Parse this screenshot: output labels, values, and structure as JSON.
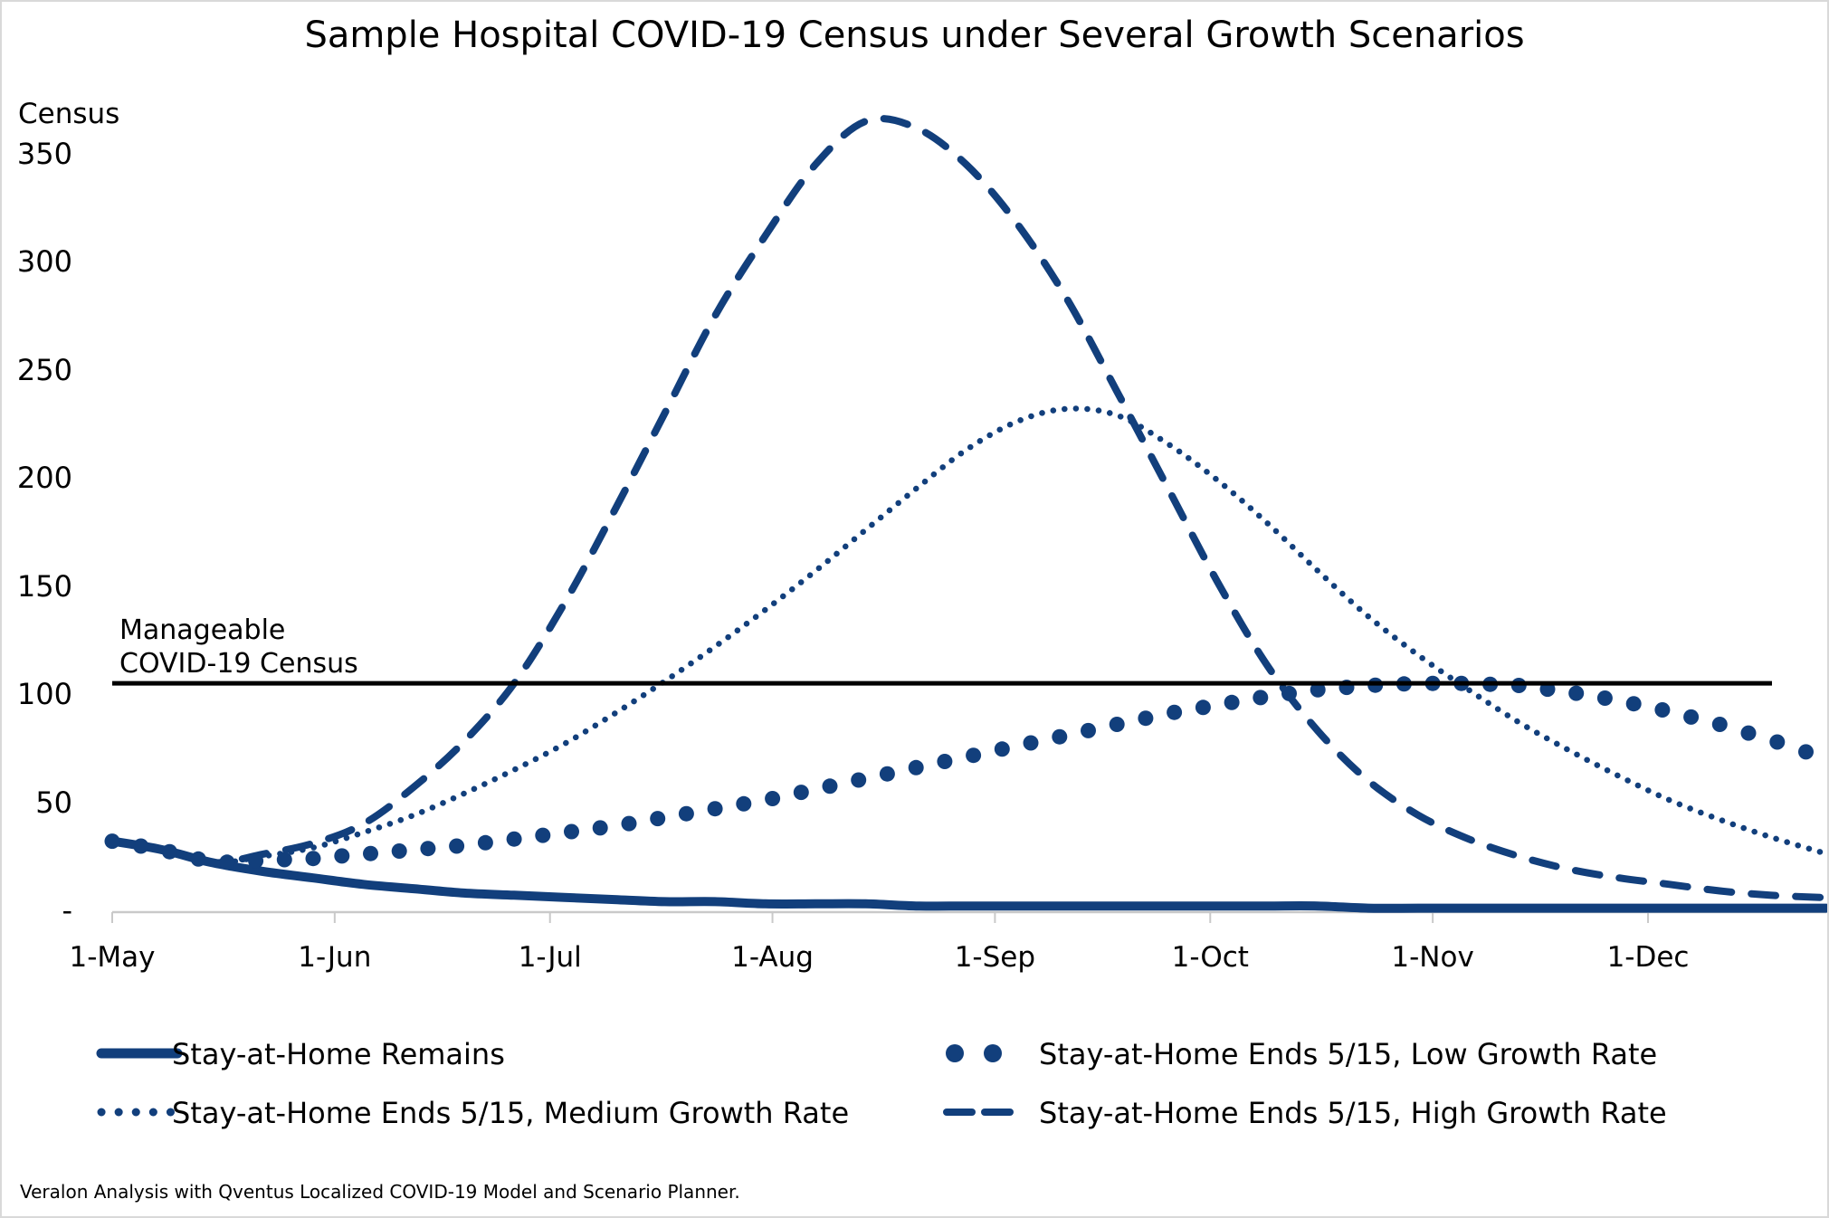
{
  "title": "Sample Hospital COVID-19 Census under Several Growth Scenarios",
  "y_axis": {
    "title": "Census",
    "tick_labels": [
      "350",
      "300",
      "250",
      "200",
      "150",
      "100",
      "50",
      "-"
    ],
    "tick_values": [
      350,
      300,
      250,
      200,
      150,
      100,
      50,
      0
    ]
  },
  "x_axis": {
    "tick_labels": [
      "1-May",
      "1-Jun",
      "1-Jul",
      "1-Aug",
      "1-Sep",
      "1-Oct",
      "1-Nov",
      "1-Dec"
    ],
    "tick_day_offsets": [
      0,
      31,
      61,
      92,
      123,
      153,
      184,
      214
    ]
  },
  "reference_line": {
    "label_line1": "Manageable",
    "label_line2": "COVID-19 Census",
    "value": 105
  },
  "legend": {
    "item1": "Stay-at-Home Remains",
    "item2": "Stay-at-Home Ends 5/15, Low Growth Rate",
    "item3": "Stay-at-Home Ends 5/15, Medium Growth Rate",
    "item4": "Stay-at-Home Ends 5/15, High Growth Rate"
  },
  "footnote": "Veralon Analysis with Qventus Localized COVID-19 Model and Scenario Planner.",
  "colors": {
    "series_navy": "#123F7C",
    "reference_black": "#000000",
    "axis_gray": "#C9C9C9",
    "text_black": "#000000"
  },
  "chart_data": {
    "type": "line",
    "title": "Sample Hospital COVID-19 Census under Several Growth Scenarios",
    "ylabel": "Census",
    "ylim": [
      0,
      380
    ],
    "y_tick_values": [
      0,
      50,
      100,
      150,
      200,
      250,
      300,
      350
    ],
    "x_tick_labels": [
      "1-May",
      "1-Jun",
      "1-Jul",
      "1-Aug",
      "1-Sep",
      "1-Oct",
      "1-Nov",
      "1-Dec"
    ],
    "reference_line_value": 105,
    "grid": false,
    "legend_position": "bottom",
    "x_weekly_dates": [
      "May-01",
      "May-08",
      "May-15",
      "May-22",
      "May-29",
      "Jun-05",
      "Jun-12",
      "Jun-19",
      "Jun-26",
      "Jul-03",
      "Jul-10",
      "Jul-17",
      "Jul-24",
      "Jul-31",
      "Aug-07",
      "Aug-14",
      "Aug-21",
      "Aug-28",
      "Sep-04",
      "Sep-11",
      "Sep-18",
      "Sep-25",
      "Oct-02",
      "Oct-09",
      "Oct-16",
      "Oct-23",
      "Oct-30",
      "Nov-06",
      "Nov-13",
      "Nov-20",
      "Nov-27",
      "Dec-04",
      "Dec-11",
      "Dec-18",
      "Dec-25"
    ],
    "series": [
      {
        "name": "Stay-at-Home Remains",
        "style": "solid",
        "values": [
          32,
          28,
          22,
          18,
          15,
          12,
          10,
          8,
          7,
          6,
          5,
          4,
          4,
          3,
          3,
          3,
          2,
          2,
          2,
          2,
          2,
          2,
          2,
          2,
          2,
          1,
          1,
          1,
          1,
          1,
          1,
          1,
          1,
          1,
          1
        ]
      },
      {
        "name": "Stay-at-Home Ends 5/15, Low Growth Rate",
        "style": "round-dots",
        "values": [
          32,
          28,
          22,
          23,
          24,
          26,
          28,
          30,
          33,
          36,
          39,
          43,
          47,
          51,
          56,
          61,
          66,
          71,
          76,
          81,
          86,
          91,
          95,
          99,
          102,
          104,
          105,
          105,
          104,
          101,
          97,
          92,
          86,
          79,
          71
        ]
      },
      {
        "name": "Stay-at-Home Ends 5/15, Medium Growth Rate",
        "style": "fine-dotted",
        "values": [
          32,
          28,
          22,
          25,
          29,
          36,
          44,
          54,
          65,
          77,
          91,
          106,
          122,
          139,
          157,
          176,
          195,
          213,
          226,
          232,
          229,
          216,
          199,
          179,
          157,
          136,
          118,
          102,
          87,
          74,
          62,
          51,
          42,
          34,
          27
        ]
      },
      {
        "name": "Stay-at-Home Ends 5/15, High Growth Rate",
        "style": "dashed",
        "values": [
          32,
          28,
          22,
          26,
          31,
          40,
          57,
          78,
          105,
          142,
          185,
          230,
          275,
          312,
          345,
          365,
          362,
          345,
          318,
          283,
          240,
          196,
          152,
          113,
          83,
          60,
          44,
          33,
          25,
          19,
          15,
          12,
          9,
          7,
          6
        ]
      }
    ]
  }
}
